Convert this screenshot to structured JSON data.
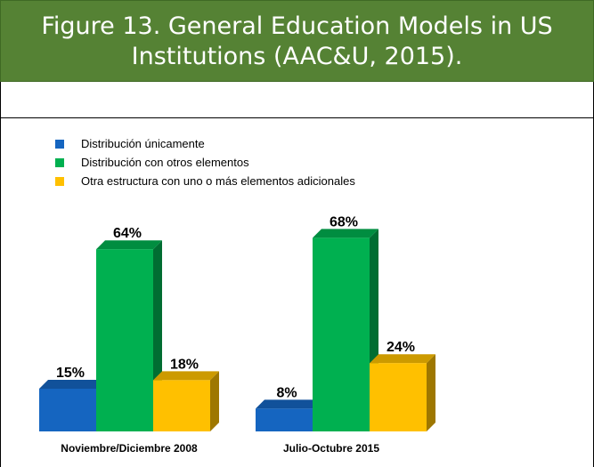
{
  "caption": {
    "line1": "Figure 13. General Education Models in US",
    "line2": "Institutions (AAC&U, 2015)."
  },
  "chart_data": {
    "type": "bar",
    "categories": [
      "Noviembre/Diciembre 2008",
      "Julio-Octubre 2015"
    ],
    "series": [
      {
        "name": "Distribución únicamente",
        "values": [
          15,
          8
        ],
        "color": "#1565c0"
      },
      {
        "name": "Distribución con otros elementos",
        "values": [
          64,
          68
        ],
        "color": "#00b050"
      },
      {
        "name": "Otra estructura con uno o más elementos adicionales",
        "values": [
          18,
          24
        ],
        "color": "#ffc000"
      }
    ],
    "value_labels": [
      [
        "15%",
        "8%"
      ],
      [
        "64%",
        "68%"
      ],
      [
        "18%",
        "24%"
      ]
    ],
    "legend_position": "top-left",
    "grid": false,
    "three_d": true
  }
}
